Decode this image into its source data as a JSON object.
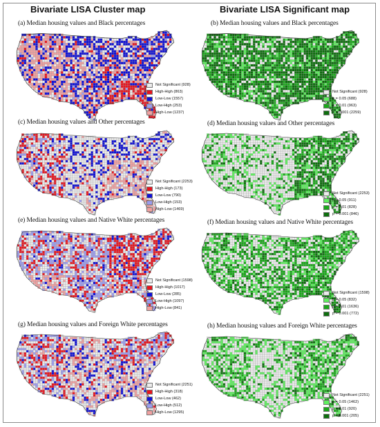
{
  "headers": {
    "left": "Bivariate LISA Cluster map",
    "right": "Bivariate LISA Significant map"
  },
  "colors": {
    "not_significant": "#ececec",
    "high_high": "#e8141e",
    "low_low": "#1010d8",
    "low_high": "#9c9cee",
    "high_low": "#f0a0a0",
    "p05": "#5eef5e",
    "p01": "#1aa81a",
    "p001": "#0e6e0e"
  },
  "panels": [
    {
      "id": "a",
      "title": "(a) Median housing values and Black percentages",
      "kind": "cluster",
      "legend": [
        {
          "color": "#ececec",
          "label": "Not Significant (928)"
        },
        {
          "color": "#e8141e",
          "label": "High-High (863)"
        },
        {
          "color": "#1010d8",
          "label": "Low-Low (1557)"
        },
        {
          "color": "#9c9cee",
          "label": "Low-High (253)"
        },
        {
          "color": "#f0a0a0",
          "label": "High-Low (1237)"
        }
      ]
    },
    {
      "id": "b",
      "title": "(b) Median housing values and Black  percentages",
      "kind": "significance",
      "legend": [
        {
          "color": "#ececec",
          "label": "Not Significant (928)"
        },
        {
          "color": "#5eef5e",
          "label": "p = 0.05 (688)"
        },
        {
          "color": "#1aa81a",
          "label": "p = 0.01 (963)"
        },
        {
          "color": "#0e6e0e",
          "label": "p = 0.001 (2259)"
        }
      ]
    },
    {
      "id": "c",
      "title": "(c) Median housing values and Other percentages",
      "kind": "cluster",
      "legend": [
        {
          "color": "#ececec",
          "label": "Not Significant (2253)"
        },
        {
          "color": "#e8141e",
          "label": "High-High (173)"
        },
        {
          "color": "#1010d8",
          "label": "Low-Low (790)"
        },
        {
          "color": "#9c9cee",
          "label": "Low-High (153)"
        },
        {
          "color": "#f0a0a0",
          "label": "High-Low (1469)"
        }
      ]
    },
    {
      "id": "d",
      "title": "(d) Median housing values and Other percentages",
      "kind": "significance",
      "legend": [
        {
          "color": "#ececec",
          "label": "Not Significant (2253)"
        },
        {
          "color": "#5eef5e",
          "label": "p = 0.05 (911)"
        },
        {
          "color": "#1aa81a",
          "label": "p = 0.01 (828)"
        },
        {
          "color": "#0e6e0e",
          "label": "p = 0.001 (846)"
        }
      ]
    },
    {
      "id": "e",
      "title": "(e) Median housing values and Native White percentages",
      "kind": "cluster",
      "legend": [
        {
          "color": "#ececec",
          "label": "Not Significant (1598)"
        },
        {
          "color": "#e8141e",
          "label": "High-High (1017)"
        },
        {
          "color": "#1010d8",
          "label": "Low-Low (285)"
        },
        {
          "color": "#9c9cee",
          "label": "Low-High (1097)"
        },
        {
          "color": "#f0a0a0",
          "label": "High-Low (841)"
        }
      ]
    },
    {
      "id": "f",
      "title": "(f) Median housing values and Native  White  percentages",
      "kind": "significance",
      "legend": [
        {
          "color": "#ececec",
          "label": "Not Significant (1598)"
        },
        {
          "color": "#5eef5e",
          "label": "p = 0.05 (832)"
        },
        {
          "color": "#1aa81a",
          "label": "p = 0.01 (1636)"
        },
        {
          "color": "#0e6e0e",
          "label": "p = 0.001 (772)"
        }
      ]
    },
    {
      "id": "g",
      "title": "(g) Median housing values and Foreign White percentages",
      "kind": "cluster",
      "legend": [
        {
          "color": "#ececec",
          "label": "Not Significant (2251)"
        },
        {
          "color": "#e8141e",
          "label": "High-High (318)"
        },
        {
          "color": "#1010d8",
          "label": "Low-Low (462)"
        },
        {
          "color": "#9c9cee",
          "label": "Low-High (512)"
        },
        {
          "color": "#f0a0a0",
          "label": "High-Low (1295)"
        }
      ]
    },
    {
      "id": "h",
      "title": "(h) Median housing values and Foreign  White  percentages",
      "kind": "significance",
      "legend": [
        {
          "color": "#ececec",
          "label": "Not Significant (2251)"
        },
        {
          "color": "#5eef5e",
          "label": "p = 0.05 (1462)"
        },
        {
          "color": "#1aa81a",
          "label": "p = 0.01 (920)"
        },
        {
          "color": "#0e6e0e",
          "label": "p = 0.001 (205)"
        }
      ]
    }
  ]
}
